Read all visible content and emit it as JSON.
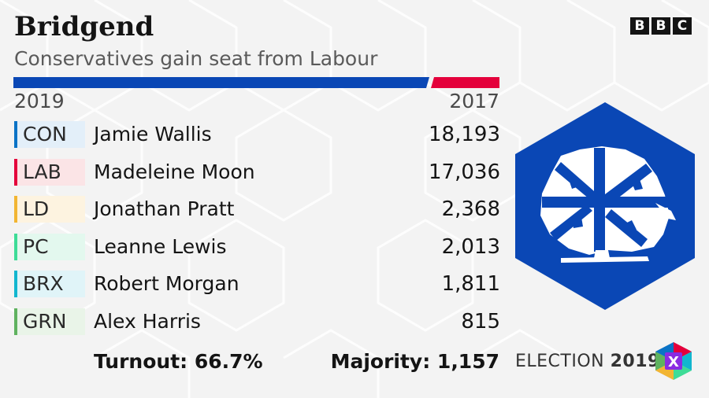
{
  "header": {
    "constituency": "Bridgend",
    "result": "Conservatives gain seat from Labour",
    "year_current": "2019",
    "year_previous": "2017"
  },
  "brand": {
    "letters": [
      "B",
      "B",
      "C"
    ]
  },
  "colors": {
    "con": "#0a73c6",
    "lab": "#e4003b",
    "ld": "#f2b532",
    "pc": "#3ddc97",
    "brx": "#12b6cf",
    "grn": "#5fb25f",
    "winner": "#0a47b5"
  },
  "candidates": [
    {
      "party": "CON",
      "name": "Jamie Wallis",
      "votes": "18,193",
      "color": "#0a73c6",
      "tint": "#e3eff9"
    },
    {
      "party": "LAB",
      "name": "Madeleine Moon",
      "votes": "17,036",
      "color": "#e4003b",
      "tint": "#fbe4e6"
    },
    {
      "party": "LD",
      "name": "Jonathan Pratt",
      "votes": "2,368",
      "color": "#f2b532",
      "tint": "#fdf3e0"
    },
    {
      "party": "PC",
      "name": "Leanne Lewis",
      "votes": "2,013",
      "color": "#3ddc97",
      "tint": "#e3f8ee"
    },
    {
      "party": "BRX",
      "name": "Robert Morgan",
      "votes": "1,811",
      "color": "#12b6cf",
      "tint": "#e0f4f8"
    },
    {
      "party": "GRN",
      "name": "Alex Harris",
      "votes": "815",
      "color": "#5fb25f",
      "tint": "#e9f4e8"
    }
  ],
  "footer": {
    "turnout": "Turnout: 66.7%",
    "majority": "Majority: 1,157",
    "election_word": "ELECTION",
    "election_year": "2019",
    "badge_letter": "X"
  },
  "icons": {
    "party_logo": "conservative-tree-icon",
    "election_badge": "election-x-icon"
  }
}
